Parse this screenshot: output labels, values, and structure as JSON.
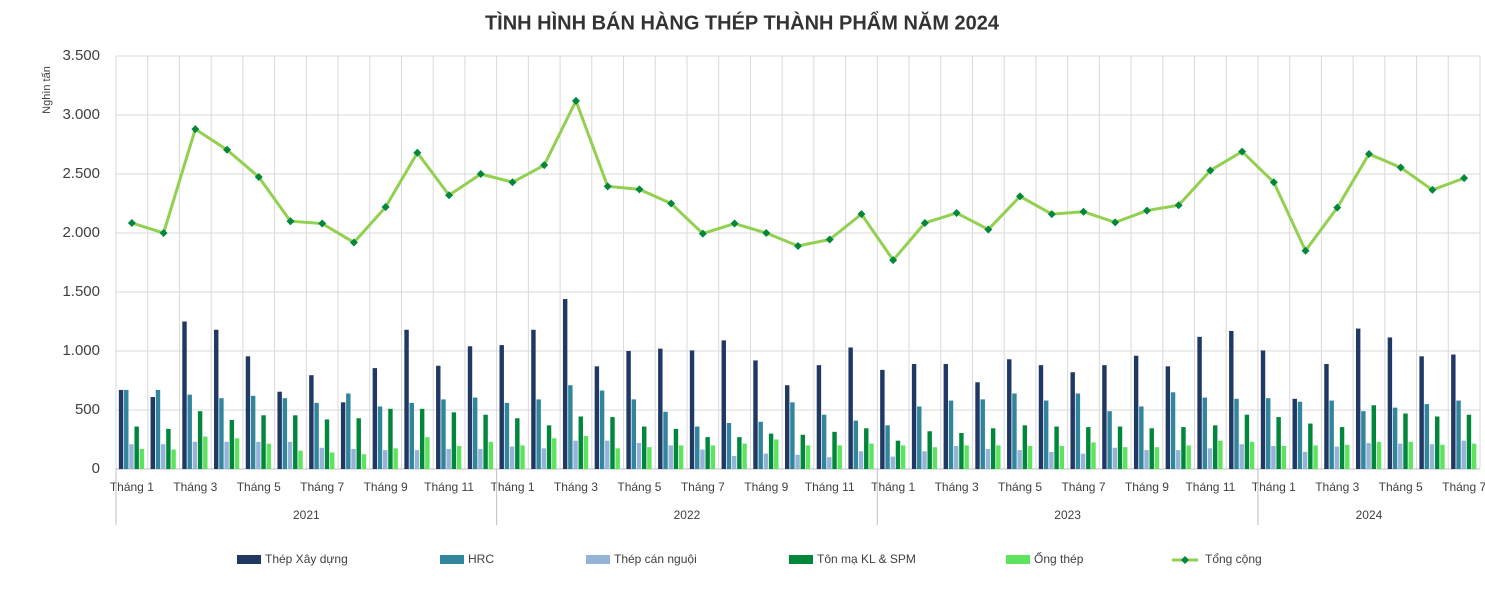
{
  "chart_data": {
    "type": "bar-line",
    "title": "TÌNH HÌNH BÁN HÀNG THÉP THÀNH PHẨM NĂM 2024",
    "y_label": "Nghìn tấn",
    "categories": [
      "Tháng 1",
      null,
      "Tháng 3",
      null,
      "Tháng 5",
      null,
      "Tháng 7",
      null,
      "Tháng 9",
      null,
      "Tháng 11",
      null,
      "Tháng 1",
      null,
      "Tháng 3",
      null,
      "Tháng 5",
      null,
      "Tháng 7",
      null,
      "Tháng 9",
      null,
      "Tháng 11",
      null,
      "Tháng 1",
      null,
      "Tháng 3",
      null,
      "Tháng 5",
      null,
      "Tháng 7",
      null,
      "Tháng 9",
      null,
      "Tháng 11",
      null,
      "Tháng 1",
      null,
      "Tháng 3",
      null,
      "Tháng 5",
      null,
      "Tháng 7"
    ],
    "category_groups": [
      {
        "label": "2021",
        "span": 12
      },
      {
        "label": "2022",
        "span": 12
      },
      {
        "label": "2023",
        "span": 12
      },
      {
        "label": "2024",
        "span": 7
      }
    ],
    "ylim": [
      0,
      3500
    ],
    "yticks": [
      0,
      500,
      {
        "value": 1000,
        "label": "1.000"
      },
      {
        "value": 1500,
        "label": "1.500"
      },
      {
        "value": 2000,
        "label": "2.000"
      },
      {
        "value": 2500,
        "label": "2.500"
      },
      {
        "value": 3000,
        "label": "3.000"
      },
      {
        "value": 3500,
        "label": "3.500"
      }
    ],
    "grid": true,
    "legend": "bottom",
    "series": [
      {
        "name": "Thép Xây dựng",
        "kind": "bar",
        "color": "#1f3864",
        "values": [
          670,
          610,
          1250,
          1180,
          955,
          655,
          795,
          565,
          855,
          1180,
          875,
          1040,
          1050,
          1180,
          1440,
          870,
          1000,
          1020,
          1005,
          1090,
          920,
          710,
          880,
          1030,
          840,
          890,
          890,
          735,
          930,
          880,
          820,
          880,
          960,
          870,
          1120,
          1170,
          1005,
          595,
          890,
          1190,
          1115,
          955,
          970
        ]
      },
      {
        "name": "HRC",
        "kind": "bar",
        "color": "#31859c",
        "values": [
          670,
          670,
          630,
          600,
          620,
          600,
          560,
          640,
          530,
          560,
          590,
          605,
          560,
          590,
          710,
          665,
          590,
          485,
          360,
          390,
          400,
          565,
          460,
          410,
          370,
          530,
          580,
          590,
          640,
          580,
          640,
          490,
          530,
          650,
          605,
          595,
          600,
          570,
          580,
          490,
          520,
          550,
          580
        ]
      },
      {
        "name": "Thép cán nguội",
        "kind": "bar",
        "color": "#95b3d7",
        "values": [
          210,
          210,
          230,
          230,
          230,
          230,
          180,
          170,
          160,
          160,
          170,
          170,
          190,
          175,
          240,
          240,
          220,
          200,
          165,
          110,
          130,
          120,
          100,
          150,
          105,
          150,
          195,
          170,
          160,
          145,
          130,
          180,
          160,
          160,
          175,
          210,
          195,
          145,
          190,
          220,
          215,
          210,
          240
        ]
      },
      {
        "name": "Tôn mạ KL & SPM",
        "kind": "bar",
        "color": "#00873c",
        "values": [
          360,
          340,
          490,
          415,
          455,
          455,
          420,
          430,
          510,
          510,
          480,
          460,
          430,
          370,
          445,
          440,
          360,
          340,
          270,
          270,
          300,
          290,
          315,
          345,
          240,
          320,
          305,
          345,
          370,
          360,
          355,
          360,
          345,
          355,
          370,
          460,
          440,
          385,
          355,
          540,
          470,
          445,
          460
        ]
      },
      {
        "name": "Ống thép",
        "kind": "bar",
        "color": "#5ee35e",
        "values": [
          170,
          165,
          275,
          260,
          215,
          155,
          140,
          125,
          175,
          270,
          195,
          230,
          200,
          260,
          280,
          175,
          185,
          200,
          200,
          215,
          250,
          200,
          200,
          215,
          200,
          185,
          200,
          200,
          195,
          195,
          225,
          185,
          185,
          200,
          240,
          230,
          195,
          200,
          205,
          230,
          230,
          205,
          215
        ]
      },
      {
        "name": "Tổng cộng",
        "kind": "line",
        "color": "#92d050",
        "marker_color": "#00873c",
        "values": [
          2085,
          2000,
          2880,
          2705,
          2475,
          2100,
          2080,
          1920,
          2220,
          2680,
          2320,
          2500,
          2430,
          2575,
          3120,
          2395,
          2370,
          2250,
          1995,
          2080,
          2000,
          1890,
          1945,
          2160,
          1770,
          2085,
          2170,
          2030,
          2310,
          2160,
          2180,
          2090,
          2190,
          2235,
          2530,
          2690,
          2430,
          1850,
          2215,
          2670,
          2555,
          2365,
          2465
        ]
      }
    ]
  }
}
